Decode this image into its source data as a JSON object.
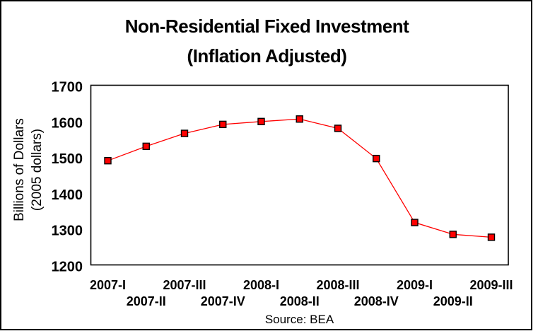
{
  "title": {
    "line1": "Non-Residential Fixed Investment",
    "line2": "(Inflation Adjusted)"
  },
  "y_axis": {
    "label_line1": "Billions of Dollars",
    "label_line2": "(2005 dollars)"
  },
  "footer": {
    "source": "Source: BEA"
  },
  "chart_data": {
    "type": "line",
    "title": "Non-Residential Fixed Investment (Inflation Adjusted)",
    "categories": [
      "2007-I",
      "2007-II",
      "2007-III",
      "2007-IV",
      "2008-I",
      "2008-II",
      "2008-III",
      "2008-IV",
      "2009-I",
      "2009-II",
      "2009-III"
    ],
    "values": [
      1490,
      1530,
      1566,
      1591,
      1599,
      1606,
      1580,
      1496,
      1318,
      1285,
      1277
    ],
    "ylabel": "Billions of Dollars (2005 dollars)",
    "xlabel": "",
    "ylim": [
      1200,
      1700
    ],
    "yticks": [
      1200,
      1300,
      1400,
      1500,
      1600,
      1700
    ],
    "grid": false,
    "legend": "none",
    "x_label_stagger": "two-rows",
    "line_color": "#ff0000",
    "marker": "square",
    "marker_fill": "#ff0000",
    "marker_edge": "#000000",
    "source": "Source: BEA"
  }
}
